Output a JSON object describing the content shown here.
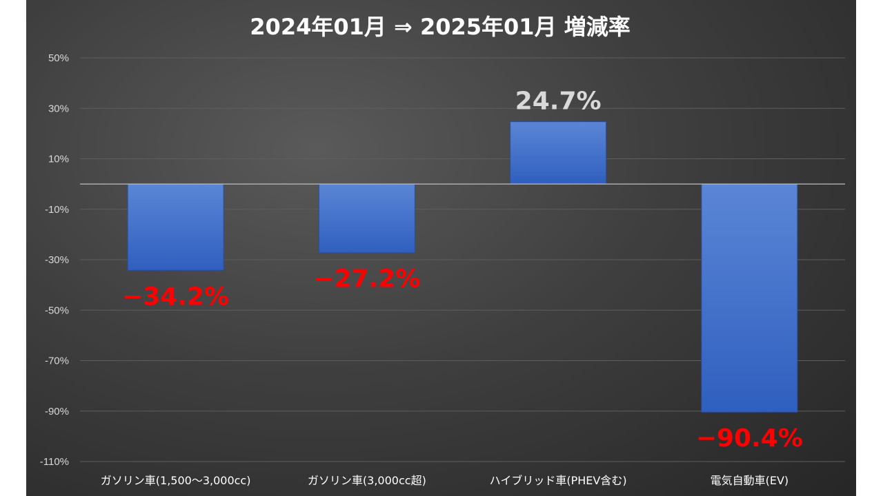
{
  "chart_data": {
    "type": "bar",
    "title": "2024年01月 ⇒ 2025年01月 増減率",
    "categories": [
      "ガソリン車(1,500〜3,000cc)",
      "ガソリン車(3,000cc超)",
      "ハイブリッド車(PHEV含む)",
      "電気自動車(EV)"
    ],
    "values": [
      -34.2,
      -27.2,
      24.7,
      -90.4
    ],
    "data_labels": [
      "−34.2%",
      "−27.2%",
      "24.7%",
      "−90.4%"
    ],
    "ylim": [
      -110,
      50
    ],
    "yticks": [
      50,
      30,
      10,
      -10,
      -30,
      -50,
      -70,
      -90,
      -110
    ],
    "ytick_labels": [
      "50%",
      "30%",
      "10%",
      "-10%",
      "-30%",
      "-50%",
      "-70%",
      "-90%",
      "-110%"
    ],
    "grid": true,
    "legend": "none",
    "colors": {
      "bar_top": "#5b86d6",
      "bar_bottom": "#2f5fbf",
      "negative_label": "#ff0000",
      "positive_label": "#d9d9d9",
      "gridline": "#5e5e5e",
      "zero_line": "#bfbfbf",
      "background": "#404040"
    }
  }
}
